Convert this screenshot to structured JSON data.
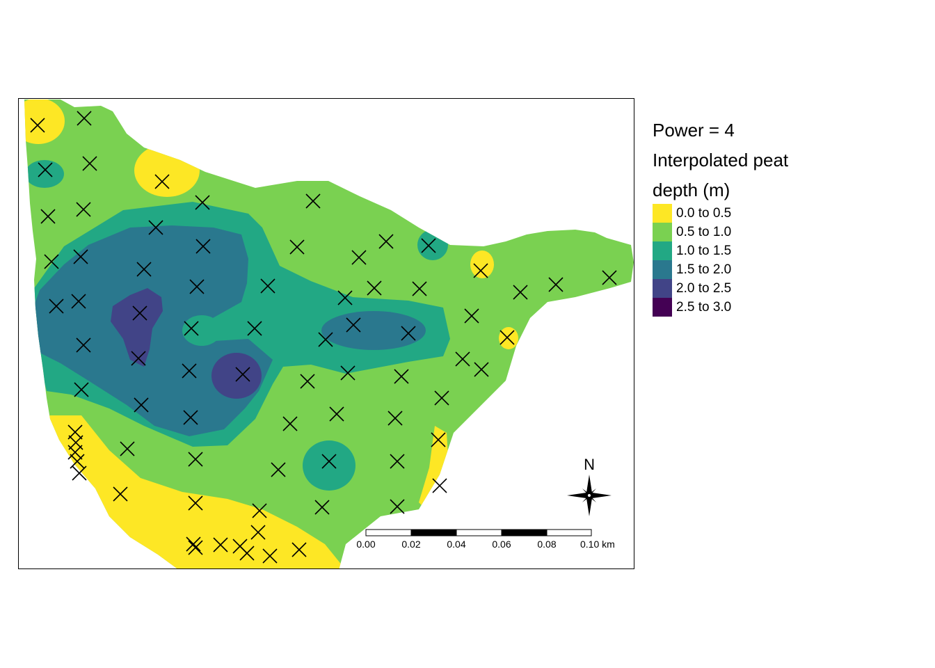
{
  "legend": {
    "title_line1": "Power = 4",
    "title_line2": "Interpolated peat",
    "title_line3": "depth (m)",
    "classes": [
      {
        "label": "0.0 to 0.5",
        "color": "#FDE725"
      },
      {
        "label": "0.5 to 1.0",
        "color": "#7AD151"
      },
      {
        "label": "1.0 to 1.5",
        "color": "#22A884"
      },
      {
        "label": "1.5 to 2.0",
        "color": "#2A788E"
      },
      {
        "label": "2.0 to 2.5",
        "color": "#414487"
      },
      {
        "label": "2.5 to 3.0",
        "color": "#440154"
      }
    ]
  },
  "scale_bar": {
    "labels": [
      "0.00",
      "0.02",
      "0.04",
      "0.06",
      "0.08",
      "0.10 km"
    ]
  },
  "north_arrow": {
    "label": "N"
  },
  "map": {
    "sample_point_icon": "x-marker-icon",
    "sample_point_count": 84
  }
}
